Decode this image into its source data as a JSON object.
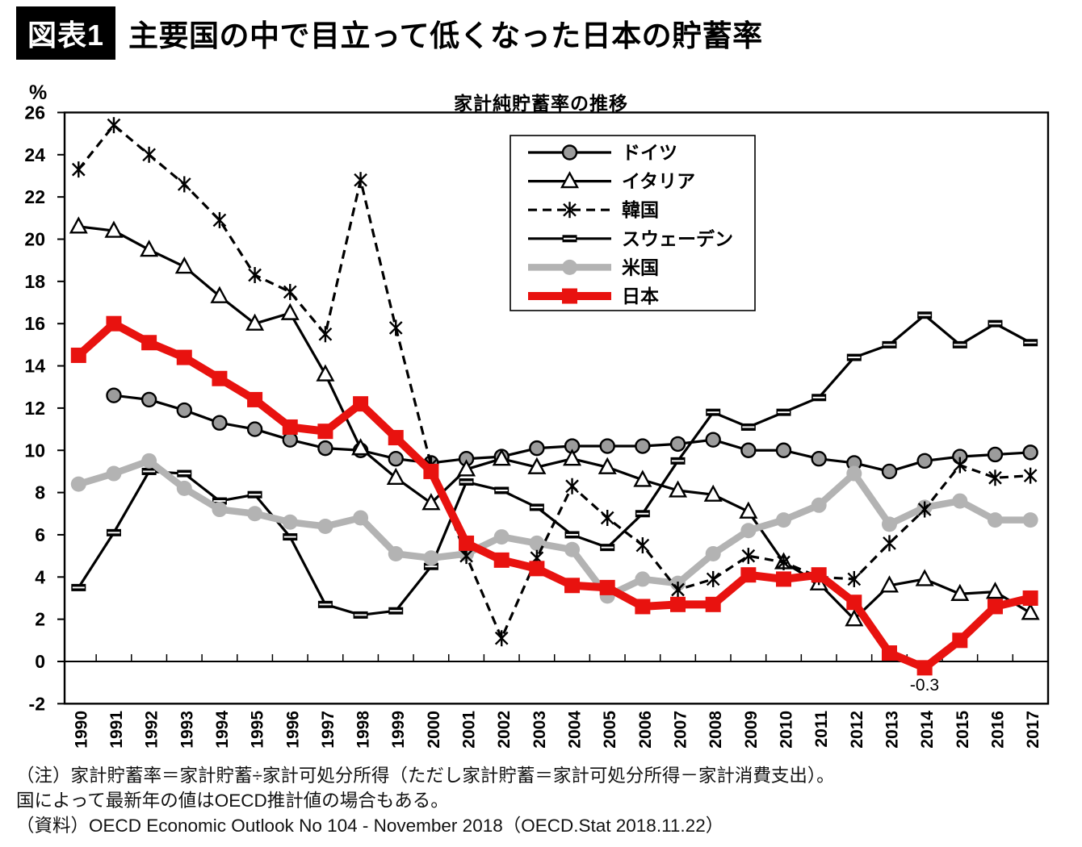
{
  "header": {
    "badge": "図表1",
    "title": "主要国の中で目立って低くなった日本の貯蓄率"
  },
  "chart_data": {
    "type": "line",
    "title": "家計純貯蓄率の推移",
    "y_unit": "%",
    "ylim": [
      -2,
      26
    ],
    "y_tick_step": 2,
    "grid": false,
    "legend_position": "top-right-inside",
    "years": [
      1990,
      1991,
      1992,
      1993,
      1994,
      1995,
      1996,
      1997,
      1998,
      1999,
      2000,
      2001,
      2002,
      2003,
      2004,
      2005,
      2006,
      2007,
      2008,
      2009,
      2010,
      2011,
      2012,
      2013,
      2014,
      2015,
      2016,
      2017
    ],
    "series": [
      {
        "name": "ドイツ",
        "key": "germany",
        "marker": "circle-outlined",
        "color": "#000000",
        "marker_fill": "#9c9c9c",
        "width": 3.2,
        "values": [
          null,
          12.6,
          12.4,
          11.9,
          11.3,
          11.0,
          10.5,
          10.1,
          10.0,
          9.6,
          9.4,
          9.6,
          9.7,
          10.1,
          10.2,
          10.2,
          10.2,
          10.3,
          10.5,
          10.0,
          10.0,
          9.6,
          9.4,
          9.0,
          9.5,
          9.7,
          9.8,
          9.9
        ]
      },
      {
        "name": "イタリア",
        "key": "italy",
        "marker": "triangle",
        "color": "#000000",
        "marker_fill": "#ffffff",
        "width": 3.2,
        "values": [
          20.6,
          20.4,
          19.5,
          18.7,
          17.3,
          16.0,
          16.5,
          13.6,
          10.1,
          8.7,
          7.5,
          9.1,
          9.6,
          9.2,
          9.6,
          9.2,
          8.6,
          8.1,
          7.9,
          7.1,
          4.7,
          3.7,
          2.0,
          3.6,
          3.9,
          3.2,
          3.3,
          2.3
        ]
      },
      {
        "name": "スウェーデン",
        "key": "sweden",
        "marker": "dash",
        "color": "#000000",
        "marker_fill": "#000000",
        "width": 3.2,
        "values": [
          3.5,
          6.1,
          9.0,
          8.9,
          7.6,
          7.9,
          5.9,
          2.7,
          2.2,
          2.4,
          4.5,
          8.5,
          8.1,
          7.3,
          6.0,
          5.4,
          7.0,
          9.5,
          11.8,
          11.1,
          11.8,
          12.5,
          14.4,
          15.0,
          16.4,
          15.0,
          16.0,
          15.1
        ]
      },
      {
        "name": "米国",
        "key": "usa",
        "marker": "circle-filled",
        "color": "#b3b3b3",
        "marker_fill": "#b3b3b3",
        "width": 8.5,
        "values": [
          8.4,
          8.9,
          9.5,
          8.2,
          7.2,
          7.0,
          6.6,
          6.4,
          6.8,
          5.1,
          4.9,
          5.1,
          5.9,
          5.6,
          5.3,
          3.1,
          3.9,
          3.7,
          5.1,
          6.2,
          6.7,
          7.4,
          8.9,
          6.5,
          7.3,
          7.6,
          6.7,
          6.7
        ]
      },
      {
        "name": "韓国",
        "key": "korea",
        "marker": "asterisk",
        "color": "#000000",
        "marker_fill": "#000000",
        "width": 3.2,
        "dash": "11 7",
        "values": [
          23.3,
          25.4,
          24.0,
          22.6,
          20.9,
          18.3,
          17.5,
          15.5,
          22.8,
          15.8,
          9.3,
          5.0,
          1.1,
          4.9,
          8.3,
          6.8,
          5.5,
          3.4,
          3.9,
          5.0,
          4.7,
          4.0,
          3.9,
          5.6,
          7.2,
          9.3,
          8.7,
          8.8
        ]
      },
      {
        "name": "日本",
        "key": "japan",
        "marker": "square",
        "color": "#e8120f",
        "marker_fill": "#e8120f",
        "width": 10,
        "values": [
          14.5,
          16.0,
          15.1,
          14.4,
          13.4,
          12.4,
          11.1,
          10.9,
          12.2,
          10.6,
          9.0,
          5.6,
          4.8,
          4.4,
          3.6,
          3.5,
          2.6,
          2.7,
          2.7,
          4.1,
          3.9,
          4.1,
          2.8,
          0.4,
          -0.3,
          1.0,
          2.6,
          3.0
        ]
      }
    ],
    "legend_order": [
      "germany",
      "italy",
      "korea",
      "sweden",
      "usa",
      "japan"
    ],
    "annotation": {
      "text": "-0.3",
      "year": 2014,
      "series": "japan"
    }
  },
  "notes": {
    "line1": "（注）家計貯蓄率＝家計貯蓄÷家計可処分所得（ただし家計貯蓄＝家計可処分所得－家計消費支出）。",
    "line2": "国によって最新年の値はOECD推計値の場合もある。",
    "line3": "（資料）OECD Economic Outlook No 104 - November 2018（OECD.Stat 2018.11.22）"
  }
}
